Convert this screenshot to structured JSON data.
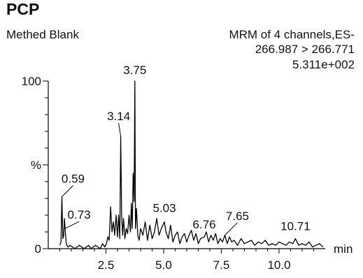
{
  "header": {
    "compound": "PCP",
    "sample": "Methed Blank",
    "method_line1": "MRM of 4 channels,ES-",
    "method_line2": "266.987 > 266.771",
    "intensity": "5.311e+002"
  },
  "chart_data": {
    "type": "line",
    "title": "PCP",
    "subtitle": "Methed Blank",
    "xlabel": "min",
    "ylabel": "%",
    "xlim": [
      0,
      12
    ],
    "ylim": [
      0,
      100
    ],
    "xticks": [
      2.5,
      5.0,
      7.5,
      10.0
    ],
    "xtick_labels": [
      "2.5",
      "5.0",
      "7.5",
      "10.0"
    ],
    "yticks": [
      0,
      100
    ],
    "ytick_labels": [
      "0",
      "100"
    ],
    "series": [
      {
        "color": "#000000",
        "x": [
          0.5,
          0.55,
          0.59,
          0.63,
          0.67,
          0.7,
          0.73,
          0.78,
          0.85,
          0.95,
          1.05,
          1.15,
          1.25,
          1.35,
          1.45,
          1.55,
          1.65,
          1.75,
          1.85,
          1.95,
          2.05,
          2.15,
          2.25,
          2.35,
          2.45,
          2.52,
          2.58,
          2.64,
          2.7,
          2.76,
          2.82,
          2.88,
          2.94,
          3.0,
          3.05,
          3.1,
          3.14,
          3.18,
          3.22,
          3.26,
          3.32,
          3.38,
          3.44,
          3.5,
          3.56,
          3.6,
          3.64,
          3.68,
          3.72,
          3.75,
          3.78,
          3.82,
          3.88,
          3.94,
          4.0,
          4.1,
          4.2,
          4.3,
          4.4,
          4.5,
          4.6,
          4.7,
          4.8,
          4.9,
          5.03,
          5.1,
          5.2,
          5.3,
          5.4,
          5.5,
          5.6,
          5.7,
          5.8,
          5.9,
          6.0,
          6.1,
          6.2,
          6.3,
          6.4,
          6.5,
          6.6,
          6.76,
          6.85,
          6.95,
          7.05,
          7.15,
          7.25,
          7.35,
          7.45,
          7.55,
          7.65,
          7.75,
          7.85,
          7.95,
          8.05,
          8.2,
          8.35,
          8.5,
          8.65,
          8.8,
          8.95,
          9.1,
          9.25,
          9.4,
          9.55,
          9.7,
          9.85,
          10.0,
          10.15,
          10.3,
          10.45,
          10.6,
          10.71,
          10.85,
          11.0,
          11.15,
          11.3,
          11.45,
          11.6,
          11.75,
          11.9
        ],
        "y": [
          2,
          4,
          31,
          6,
          8,
          18,
          12,
          3,
          1,
          2,
          1,
          0,
          1,
          2,
          1,
          0,
          1,
          2,
          0,
          1,
          2,
          1,
          0,
          3,
          1,
          3,
          7,
          5,
          25,
          10,
          16,
          8,
          20,
          7,
          20,
          6,
          67,
          20,
          8,
          18,
          6,
          12,
          9,
          20,
          10,
          27,
          12,
          45,
          28,
          100,
          12,
          24,
          8,
          5,
          12,
          8,
          16,
          5,
          14,
          6,
          10,
          18,
          8,
          12,
          16,
          10,
          6,
          14,
          4,
          8,
          10,
          3,
          7,
          9,
          4,
          8,
          11,
          5,
          9,
          3,
          6,
          7,
          10,
          4,
          8,
          5,
          9,
          3,
          6,
          4,
          8,
          3,
          7,
          4,
          5,
          2,
          6,
          3,
          4,
          5,
          2,
          4,
          3,
          5,
          2,
          3,
          2,
          4,
          3,
          2,
          4,
          3,
          6,
          2,
          3,
          2,
          4,
          1,
          2,
          3,
          1
        ]
      }
    ],
    "annotations": [
      {
        "label": "0.59",
        "x": 0.59,
        "y": 31
      },
      {
        "label": "0.73",
        "x": 0.73,
        "y": 12
      },
      {
        "label": "3.14",
        "x": 3.14,
        "y": 67
      },
      {
        "label": "3.75",
        "x": 3.75,
        "y": 100
      },
      {
        "label": "5.03",
        "x": 5.03,
        "y": 16
      },
      {
        "label": "6.76",
        "x": 6.76,
        "y": 7
      },
      {
        "label": "7.65",
        "x": 7.65,
        "y": 8
      },
      {
        "label": "10.71",
        "x": 10.71,
        "y": 6
      }
    ]
  }
}
